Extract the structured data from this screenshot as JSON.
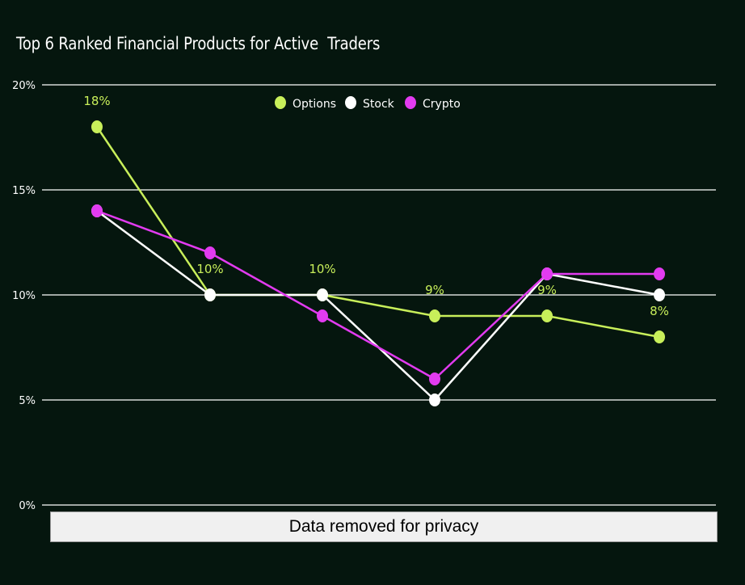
{
  "chart_data": {
    "type": "line",
    "title": "Top 6 Ranked Financial Products for Active  Traders",
    "x": [
      1,
      2,
      3,
      4,
      5,
      6
    ],
    "xlabel": "",
    "ylabel": "",
    "ylim": [
      0,
      20
    ],
    "yticks": [
      {
        "value": 0,
        "label": "0%"
      },
      {
        "value": 5,
        "label": "5%"
      },
      {
        "value": 10,
        "label": "10%"
      },
      {
        "value": 15,
        "label": "15%"
      },
      {
        "value": 20,
        "label": "20%"
      }
    ],
    "grid": true,
    "legend_position": "top-center",
    "series": [
      {
        "name": "Options",
        "color": "#c8ef5a",
        "values": [
          18,
          10,
          10,
          9,
          9,
          8
        ],
        "labels": [
          "18%",
          "10%",
          "10%",
          "9%",
          "9%",
          "8%"
        ]
      },
      {
        "name": "Stock",
        "color": "#ffffff",
        "values": [
          14,
          10,
          10,
          5,
          11,
          10
        ]
      },
      {
        "name": "Crypto",
        "color": "#e23bf0",
        "values": [
          14,
          12,
          9,
          6,
          11,
          11
        ]
      }
    ]
  },
  "overlay": {
    "privacy_text": "Data removed for privacy"
  }
}
